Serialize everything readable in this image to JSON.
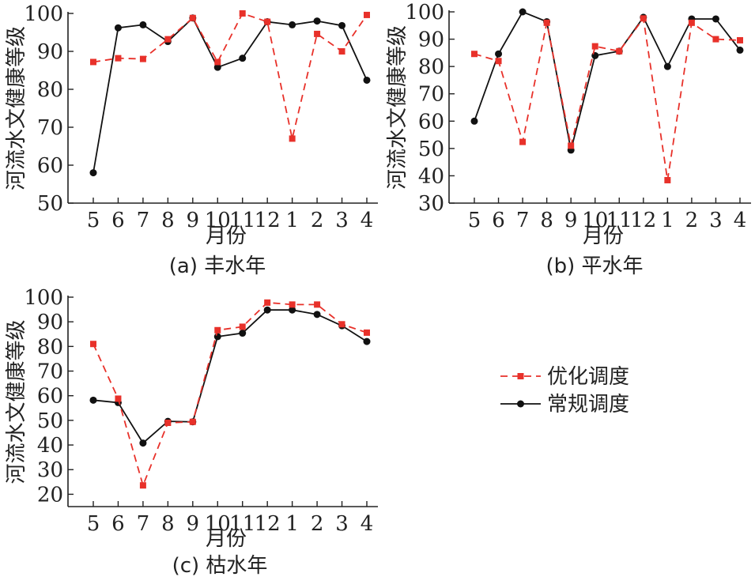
{
  "colors": {
    "optimized": "#e8312a",
    "conventional": "#111111",
    "axis": "#222222"
  },
  "legend": {
    "items": [
      "优化调度",
      "常规调度"
    ]
  },
  "chart_data": [
    {
      "type": "line",
      "caption": "(a) 丰水年",
      "xlabel": "月份",
      "ylabel": "河流水文健康等级",
      "categories": [
        "5",
        "6",
        "7",
        "8",
        "9",
        "10",
        "11",
        "12",
        "1",
        "2",
        "3",
        "4"
      ],
      "ylim": [
        50,
        100
      ],
      "yticks": [
        50,
        60,
        70,
        80,
        90,
        100
      ],
      "series": [
        {
          "name": "优化调度",
          "style": "dashed-square",
          "values": [
            87.2,
            88.2,
            88.0,
            93.2,
            98.8,
            87.2,
            100.0,
            97.8,
            67.0,
            94.6,
            90.0,
            99.6
          ]
        },
        {
          "name": "常规调度",
          "style": "solid-circle",
          "values": [
            58.0,
            96.2,
            97.0,
            92.6,
            98.8,
            85.8,
            88.2,
            97.8,
            97.0,
            98.0,
            96.8,
            82.4
          ]
        }
      ]
    },
    {
      "type": "line",
      "caption": "(b) 平水年",
      "xlabel": "月份",
      "ylabel": "河流水文健康等级",
      "categories": [
        "5",
        "6",
        "7",
        "8",
        "9",
        "10",
        "11",
        "12",
        "1",
        "2",
        "3",
        "4"
      ],
      "ylim": [
        30,
        100
      ],
      "yticks": [
        30,
        40,
        50,
        60,
        70,
        80,
        90,
        100
      ],
      "series": [
        {
          "name": "优化调度",
          "style": "dashed-square",
          "values": [
            84.6,
            82.0,
            52.4,
            96.0,
            51.0,
            87.4,
            85.6,
            97.6,
            38.4,
            96.0,
            90.0,
            89.6
          ]
        },
        {
          "name": "常规调度",
          "style": "solid-circle",
          "values": [
            60.0,
            84.6,
            100.0,
            96.4,
            49.4,
            84.0,
            85.6,
            98.0,
            80.0,
            97.4,
            97.4,
            86.0
          ]
        }
      ]
    },
    {
      "type": "line",
      "caption": "(c) 枯水年",
      "xlabel": "月份",
      "ylabel": "河流水文健康等级",
      "categories": [
        "5",
        "6",
        "7",
        "8",
        "9",
        "10",
        "11",
        "12",
        "1",
        "2",
        "3",
        "4"
      ],
      "ylim": [
        15,
        100
      ],
      "yticks": [
        20,
        30,
        40,
        50,
        60,
        70,
        80,
        90,
        100
      ],
      "series": [
        {
          "name": "优化调度",
          "style": "dashed-square",
          "values": [
            81.0,
            58.8,
            23.6,
            49.0,
            49.4,
            86.6,
            88.0,
            97.8,
            97.0,
            97.0,
            89.0,
            85.6
          ]
        },
        {
          "name": "常规调度",
          "style": "solid-circle",
          "values": [
            58.2,
            57.2,
            40.8,
            49.6,
            49.4,
            84.0,
            85.4,
            94.8,
            94.8,
            93.0,
            88.4,
            82.0
          ]
        }
      ]
    }
  ]
}
